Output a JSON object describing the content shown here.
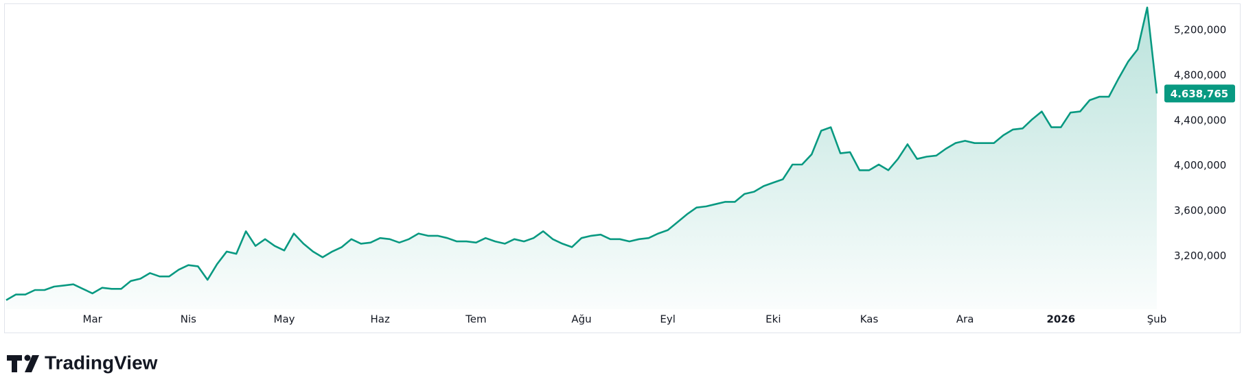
{
  "chart_data": {
    "type": "area",
    "color": "#089981",
    "categories": [
      null,
      null,
      null,
      null,
      null,
      null,
      null,
      null,
      null,
      "Mar",
      null,
      null,
      null,
      null,
      null,
      null,
      null,
      null,
      null,
      "Nis",
      null,
      null,
      null,
      null,
      null,
      null,
      null,
      null,
      null,
      "May",
      null,
      null,
      null,
      null,
      null,
      null,
      null,
      null,
      null,
      "Haz",
      null,
      null,
      null,
      null,
      null,
      null,
      null,
      null,
      null,
      "Tem",
      null,
      null,
      null,
      null,
      null,
      null,
      null,
      null,
      null,
      null,
      "Ağu",
      null,
      null,
      null,
      null,
      null,
      null,
      null,
      null,
      "Eyl",
      null,
      null,
      null,
      null,
      null,
      null,
      null,
      null,
      null,
      null,
      "Eki",
      null,
      null,
      null,
      null,
      null,
      null,
      null,
      null,
      null,
      "Kas",
      null,
      null,
      null,
      null,
      null,
      null,
      null,
      null,
      null,
      "Ara",
      null,
      null,
      null,
      null,
      null,
      null,
      null,
      null,
      null,
      "2026",
      null,
      null,
      null,
      null,
      null,
      null,
      null,
      null,
      null,
      "Şub"
    ],
    "values": [
      2810000,
      2860000,
      2860000,
      2900000,
      2900000,
      2930000,
      2940000,
      2950000,
      2910000,
      2870000,
      2920000,
      2910000,
      2910000,
      2980000,
      3000000,
      3050000,
      3020000,
      3020000,
      3080000,
      3120000,
      3110000,
      2990000,
      3130000,
      3240000,
      3220000,
      3420000,
      3290000,
      3350000,
      3290000,
      3250000,
      3400000,
      3310000,
      3240000,
      3190000,
      3240000,
      3280000,
      3350000,
      3310000,
      3320000,
      3360000,
      3350000,
      3320000,
      3350000,
      3400000,
      3380000,
      3380000,
      3360000,
      3330000,
      3330000,
      3320000,
      3360000,
      3330000,
      3310000,
      3350000,
      3330000,
      3360000,
      3420000,
      3350000,
      3310000,
      3280000,
      3360000,
      3380000,
      3390000,
      3350000,
      3350000,
      3330000,
      3350000,
      3360000,
      3400000,
      3430000,
      3500000,
      3570000,
      3630000,
      3640000,
      3660000,
      3680000,
      3680000,
      3750000,
      3770000,
      3820000,
      3850000,
      3880000,
      4010000,
      4010000,
      4100000,
      4310000,
      4340000,
      4110000,
      4120000,
      3960000,
      3960000,
      4010000,
      3960000,
      4060000,
      4190000,
      4060000,
      4080000,
      4090000,
      4150000,
      4200000,
      4220000,
      4200000,
      4200000,
      4200000,
      4270000,
      4320000,
      4330000,
      4410000,
      4480000,
      4340000,
      4340000,
      4470000,
      4480000,
      4580000,
      4610000,
      4610000,
      4770000,
      4920000,
      5030000,
      5400000,
      4638765
    ],
    "ylim": [
      2730000,
      5430000
    ],
    "yticks": [
      {
        "value": 3200000,
        "label": "3,200,000"
      },
      {
        "value": 3600000,
        "label": "3,600,000"
      },
      {
        "value": 4000000,
        "label": "4,000,000"
      },
      {
        "value": 4400000,
        "label": "4,400,000"
      },
      {
        "value": 4800000,
        "label": "4,800,000"
      },
      {
        "value": 5200000,
        "label": "5,200,000"
      }
    ],
    "last_price": {
      "value": 4638765,
      "label": "4.638,765"
    },
    "brand": "TradingView"
  }
}
